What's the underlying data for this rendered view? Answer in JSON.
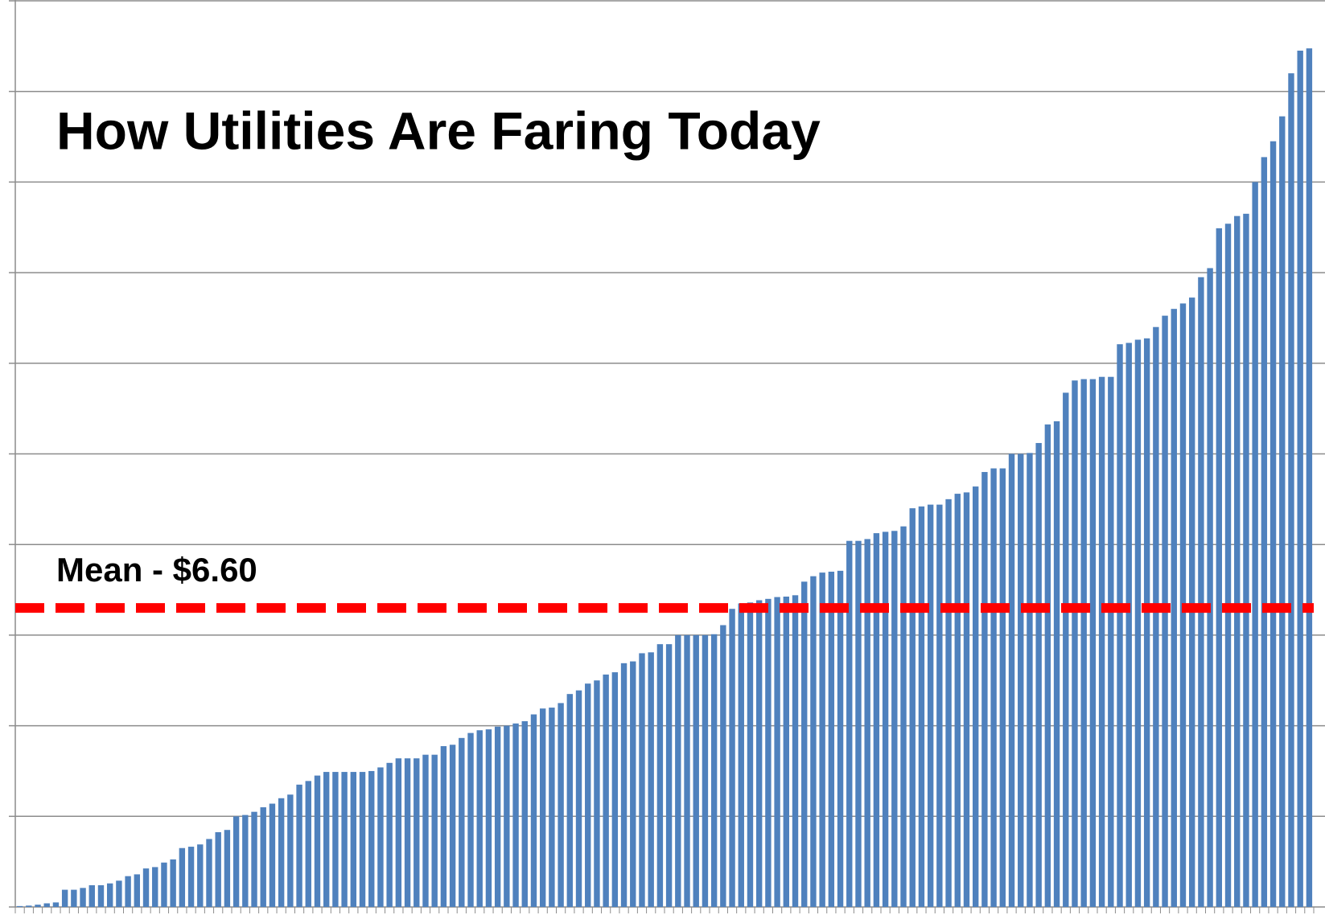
{
  "chart_data": {
    "type": "bar",
    "title": "How Utilities Are Faring Today",
    "mean": 6.6,
    "mean_label": "Mean - $6.60",
    "color": "#4f81bd",
    "mean_color": "#ff0000",
    "ylim": [
      0,
      20
    ],
    "yticks": [
      0,
      2,
      4,
      6,
      8,
      10,
      12,
      14,
      16,
      18,
      20
    ],
    "grid": true,
    "values": [
      0.02,
      0.03,
      0.05,
      0.08,
      0.1,
      0.38,
      0.38,
      0.42,
      0.48,
      0.48,
      0.52,
      0.58,
      0.68,
      0.72,
      0.85,
      0.88,
      0.98,
      1.05,
      1.3,
      1.33,
      1.38,
      1.5,
      1.65,
      1.7,
      2.0,
      2.03,
      2.1,
      2.2,
      2.28,
      2.4,
      2.48,
      2.7,
      2.78,
      2.9,
      2.98,
      2.98,
      2.98,
      2.98,
      2.98,
      3.0,
      3.08,
      3.18,
      3.28,
      3.28,
      3.28,
      3.36,
      3.36,
      3.55,
      3.58,
      3.73,
      3.84,
      3.9,
      3.92,
      3.98,
      4.0,
      4.05,
      4.1,
      4.25,
      4.38,
      4.4,
      4.5,
      4.7,
      4.78,
      4.93,
      5.0,
      5.13,
      5.18,
      5.38,
      5.42,
      5.6,
      5.62,
      5.8,
      5.8,
      6.0,
      6.0,
      6.0,
      6.0,
      6.02,
      6.22,
      6.58,
      6.7,
      6.72,
      6.77,
      6.8,
      6.84,
      6.85,
      6.88,
      7.18,
      7.3,
      7.38,
      7.4,
      7.42,
      8.08,
      8.08,
      8.12,
      8.25,
      8.28,
      8.3,
      8.4,
      8.8,
      8.84,
      8.88,
      8.88,
      9.0,
      9.12,
      9.15,
      9.28,
      9.6,
      9.68,
      9.68,
      10.0,
      10.0,
      10.02,
      10.24,
      10.65,
      10.72,
      11.35,
      11.62,
      11.65,
      11.65,
      11.7,
      11.7,
      12.42,
      12.45,
      12.52,
      12.55,
      12.8,
      13.05,
      13.2,
      13.32,
      13.45,
      13.9,
      14.1,
      14.98,
      15.08,
      15.25,
      15.3,
      16.0,
      16.55,
      16.9,
      17.45,
      18.4,
      18.9,
      18.95
    ]
  }
}
